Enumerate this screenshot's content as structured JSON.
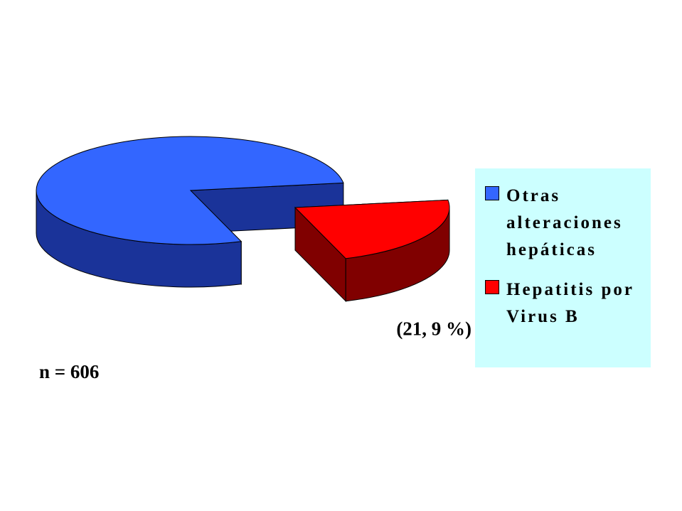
{
  "chart_data": {
    "type": "pie",
    "annotation": "n = 606",
    "categories": [
      "Otras alteraciones hepáticas",
      "Hepatitis por Virus B"
    ],
    "values": [
      78.1,
      21.9
    ],
    "value_labels": [
      null,
      "(21, 9 %)"
    ],
    "colors": [
      "#3366ff",
      "#ff0000"
    ],
    "side_colors": [
      "#1a3399",
      "#800000"
    ],
    "legend": "right"
  }
}
